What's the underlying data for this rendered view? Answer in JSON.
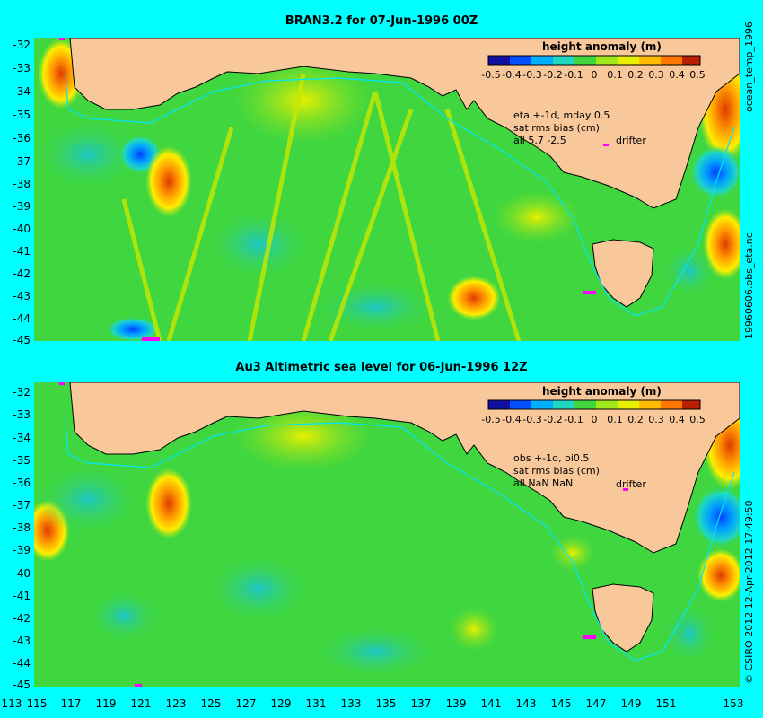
{
  "panels": [
    {
      "title": "BRAN3.2 for 07-Jun-1996 00Z",
      "colorbar_title": "height anomaly (m)",
      "notes": [
        "eta +-1d, mday 0.5",
        "sat rms bias (cm)",
        "all 5.7 -2.5"
      ],
      "drifter_label": "drifter",
      "side_label_top": "ocean_temp_1996",
      "side_label_bottom": "19960606.obs_eta.nc"
    },
    {
      "title": "Au3 Altimetric sea level  for 06-Jun-1996 12Z",
      "colorbar_title": "height anomaly  (m)",
      "notes": [
        "obs +-1d, oi0.5",
        "sat rms bias (cm)",
        "all NaN NaN"
      ],
      "drifter_label": "drifter",
      "side_label": "© CSIRO  2012  12-Apr-2012 17:49:50"
    }
  ],
  "colorbar_ticks": [
    "-0.5",
    "-0.4",
    "-0.3",
    "-0.2",
    "-0.1",
    "0",
    "0.1",
    "0.2",
    "0.3",
    "0.4",
    "0.5"
  ],
  "lat_ticks": [
    "-32",
    "-33",
    "-34",
    "-35",
    "-36",
    "-37",
    "-38",
    "-39",
    "-40",
    "-41",
    "-42",
    "-43",
    "-44",
    "-45"
  ],
  "lon_ticks": [
    "113",
    "115",
    "117",
    "119",
    "121",
    "123",
    "125",
    "127",
    "129",
    "131",
    "133",
    "135",
    "137",
    "139",
    "141",
    "143",
    "145",
    "147",
    "149",
    "151",
    "153"
  ],
  "map_extent": {
    "lon": [
      113,
      153
    ],
    "lat": [
      -45,
      -31.5
    ]
  },
  "colors": {
    "background": "#00ffff",
    "land": "#f9c89a",
    "ocean": "#3fd63f",
    "coast": "#000000",
    "highlight_contour": "#00e5ff",
    "drifter": "#ff00ff"
  }
}
